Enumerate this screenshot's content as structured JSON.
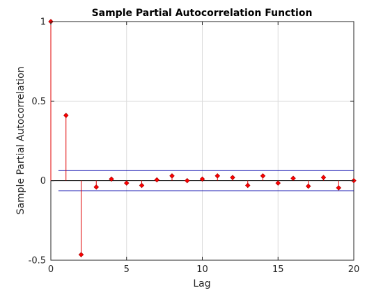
{
  "chart_data": {
    "type": "stem",
    "title": "Sample Partial Autocorrelation Function",
    "xlabel": "Lag",
    "ylabel": "Sample Partial Autocorrelation",
    "xlim": [
      0,
      20
    ],
    "ylim": [
      -0.5,
      1
    ],
    "xticks": [
      0,
      5,
      10,
      15,
      20
    ],
    "yticks": [
      -0.5,
      0,
      0.5,
      1
    ],
    "xtick_labels": [
      "0",
      "5",
      "10",
      "15",
      "20"
    ],
    "ytick_labels": [
      "-0.5",
      "0",
      "0.5",
      "1"
    ],
    "grid": true,
    "lags": [
      0,
      1,
      2,
      3,
      4,
      5,
      6,
      7,
      8,
      9,
      10,
      11,
      12,
      13,
      14,
      15,
      16,
      17,
      18,
      19,
      20
    ],
    "values": [
      1,
      0.41,
      -0.465,
      -0.04,
      0.01,
      -0.015,
      -0.03,
      0.005,
      0.03,
      0.0,
      0.01,
      0.03,
      0.02,
      -0.03,
      0.03,
      -0.015,
      0.015,
      -0.035,
      0.02,
      -0.045,
      0.0
    ],
    "confidence_bounds": [
      0.063,
      -0.063
    ],
    "colors": {
      "stem": "#e00000",
      "marker": "#ff0000",
      "bounds": "#0000aa",
      "grid": "#dcdcdc",
      "axes": "#262626"
    }
  }
}
